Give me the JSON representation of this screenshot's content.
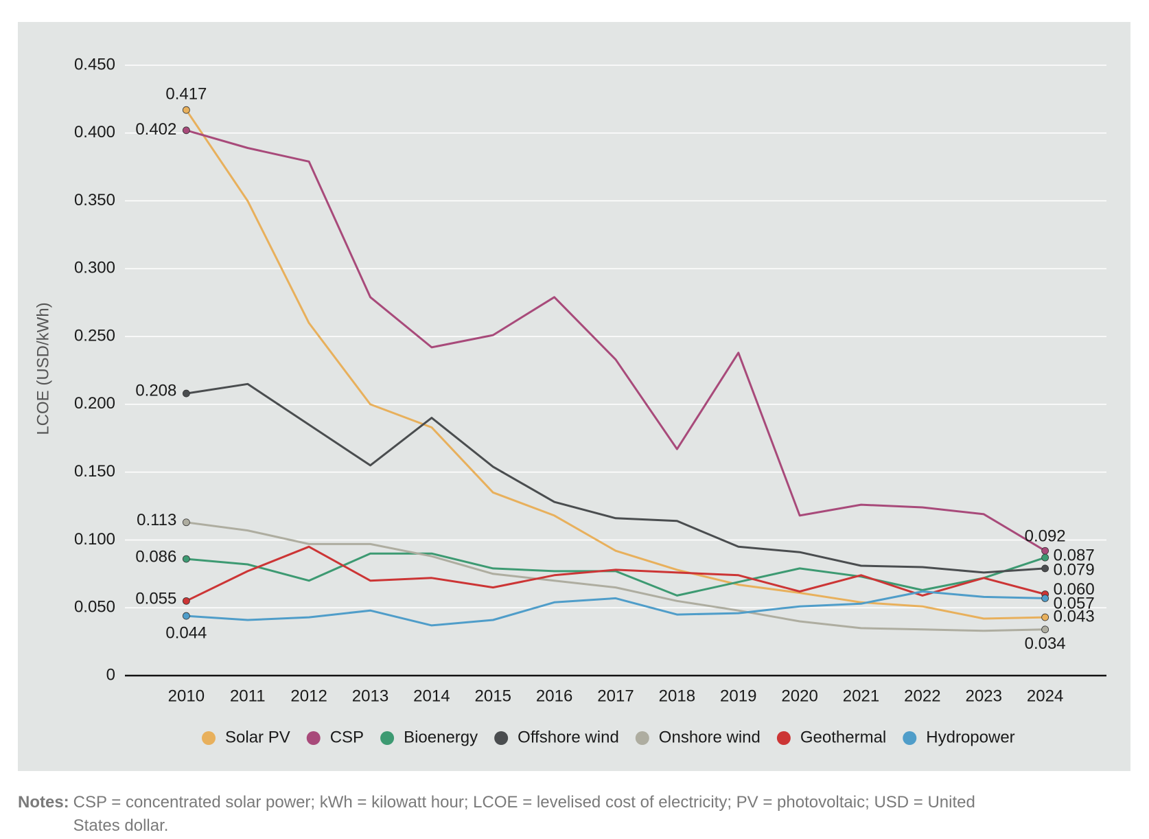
{
  "chart_data": {
    "type": "line",
    "y_label": "LCOE (USD/kWh)",
    "categories": [
      "2010",
      "2011",
      "2012",
      "2013",
      "2014",
      "2015",
      "2016",
      "2017",
      "2018",
      "2019",
      "2020",
      "2021",
      "2022",
      "2023",
      "2024"
    ],
    "ylim": [
      0,
      0.45
    ],
    "yticks": [
      0,
      {
        "value": 0.05,
        "label": "0.050"
      },
      {
        "value": 0.1,
        "label": "0.100"
      },
      {
        "value": 0.15,
        "label": "0.150"
      },
      {
        "value": 0.2,
        "label": "0.200"
      },
      {
        "value": 0.25,
        "label": "0.250"
      },
      {
        "value": 0.3,
        "label": "0.300"
      },
      {
        "value": 0.35,
        "label": "0.350"
      },
      {
        "value": 0.4,
        "label": "0.400"
      },
      {
        "value": 0.45,
        "label": "0.450"
      }
    ],
    "grid": true,
    "legend": "bottom",
    "series": [
      {
        "name": "Solar PV",
        "color": "#e8b05c",
        "values": [
          0.417,
          0.35,
          0.26,
          0.2,
          0.183,
          0.135,
          0.118,
          0.092,
          0.078,
          0.067,
          0.061,
          0.054,
          0.051,
          0.042,
          0.043
        ],
        "value_labels": [
          "0.417",
          null,
          null,
          null,
          null,
          null,
          null,
          null,
          null,
          null,
          null,
          null,
          null,
          null,
          "0.043"
        ]
      },
      {
        "name": "CSP",
        "color": "#a84a7a",
        "values": [
          0.402,
          0.389,
          0.379,
          0.279,
          0.242,
          0.251,
          0.279,
          0.233,
          0.167,
          0.238,
          0.118,
          0.126,
          0.124,
          0.119,
          0.092
        ],
        "value_labels": [
          "0.402",
          null,
          null,
          null,
          null,
          null,
          null,
          null,
          null,
          null,
          null,
          null,
          null,
          null,
          "0.092"
        ]
      },
      {
        "name": "Bioenergy",
        "color": "#3d9a72",
        "values": [
          0.086,
          0.082,
          0.07,
          0.09,
          0.09,
          0.079,
          0.077,
          0.077,
          0.059,
          0.069,
          0.079,
          0.073,
          0.063,
          0.072,
          0.087
        ],
        "value_labels": [
          "0.086",
          null,
          null,
          null,
          null,
          null,
          null,
          null,
          null,
          null,
          null,
          null,
          null,
          null,
          "0.087"
        ]
      },
      {
        "name": "Offshore wind",
        "color": "#4a4d4f",
        "values": [
          0.208,
          0.215,
          0.185,
          0.155,
          0.19,
          0.154,
          0.128,
          0.116,
          0.114,
          0.095,
          0.091,
          0.081,
          0.08,
          0.076,
          0.079
        ],
        "value_labels": [
          "0.208",
          null,
          null,
          null,
          null,
          null,
          null,
          null,
          null,
          null,
          null,
          null,
          null,
          null,
          "0.079"
        ]
      },
      {
        "name": "Onshore wind",
        "color": "#aeada0",
        "values": [
          0.113,
          0.107,
          0.097,
          0.097,
          0.088,
          0.075,
          0.07,
          0.065,
          0.055,
          0.048,
          0.04,
          0.035,
          0.034,
          0.033,
          0.034
        ],
        "value_labels": [
          "0.113",
          null,
          null,
          null,
          null,
          null,
          null,
          null,
          null,
          null,
          null,
          null,
          null,
          null,
          "0.034"
        ]
      },
      {
        "name": "Geothermal",
        "color": "#cc3535",
        "values": [
          0.055,
          0.077,
          0.095,
          0.07,
          0.072,
          0.065,
          0.074,
          0.078,
          0.076,
          0.074,
          0.062,
          0.074,
          0.059,
          0.072,
          0.06
        ],
        "value_labels": [
          "0.055",
          null,
          null,
          null,
          null,
          null,
          null,
          null,
          null,
          null,
          null,
          null,
          null,
          null,
          "0.060"
        ]
      },
      {
        "name": "Hydropower",
        "color": "#4f9dc9",
        "values": [
          0.044,
          0.041,
          0.043,
          0.048,
          0.037,
          0.041,
          0.054,
          0.057,
          0.045,
          0.046,
          0.051,
          0.053,
          0.062,
          0.058,
          0.057
        ],
        "value_labels": [
          "0.044",
          null,
          null,
          null,
          null,
          null,
          null,
          null,
          null,
          null,
          null,
          null,
          null,
          null,
          "0.057"
        ]
      }
    ]
  },
  "notes": {
    "label": "Notes:",
    "text": "CSP = concentrated solar power; kWh = kilowatt hour; LCOE = levelised cost of electricity; PV = photovoltaic; USD = United States dollar."
  }
}
